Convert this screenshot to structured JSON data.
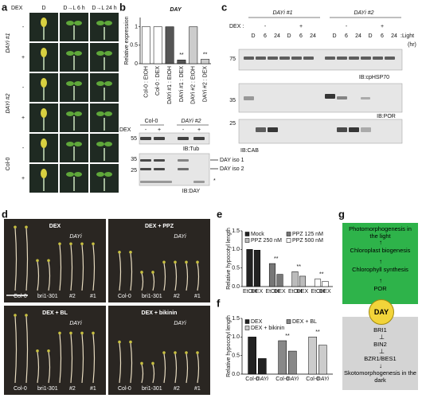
{
  "panels": {
    "a": {
      "letter": "a",
      "dex": "DEX",
      "columns": [
        "D",
        "D→L 6 h",
        "D→L 24 h"
      ],
      "rows": [
        "DAYi #1",
        "DAYi #2",
        "Col-0"
      ],
      "minus": "-",
      "plus": "+"
    },
    "b": {
      "letter": "b",
      "blot_groups": [
        "Col-0",
        "DAYi #2"
      ],
      "dex": "DEX",
      "minus": "-",
      "plus": "+",
      "tub_marker": "55",
      "tub_label": "IB:Tub",
      "day_markers": [
        "35",
        "25"
      ],
      "iso": [
        "DAY iso 1",
        "DAY iso 2"
      ],
      "star": "*",
      "day_label": "IB:DAY"
    },
    "c": {
      "letter": "c",
      "groups": [
        "DAYi #1",
        "DAYi #2"
      ],
      "dex": "DEX :",
      "minus": "-",
      "plus": "+",
      "times": [
        "D",
        "6",
        "24"
      ],
      "light": ":Light",
      "unit": "(hr)",
      "blots": [
        {
          "marker": "75",
          "label": "IB:cpHSP70"
        },
        {
          "marker": "35",
          "label": "IB:POR"
        },
        {
          "marker": "25",
          "label": "IB:CAB"
        }
      ]
    },
    "d": {
      "letter": "d",
      "conditions": [
        "DEX",
        "DEX + PPZ",
        "DEX + BL",
        "DEX + bikinin"
      ],
      "dayi": "DAYi",
      "genotypes": [
        "Col-0",
        "bri1-301",
        "#2",
        "#1"
      ]
    },
    "e": {
      "letter": "e"
    },
    "f": {
      "letter": "f"
    },
    "g": {
      "letter": "g",
      "light": [
        "Photomorphogenesis in the light",
        "Chloroplast biogenesis",
        "Chlorophyll synthesis",
        "POR"
      ],
      "day": "DAY",
      "dark": [
        "BRI1",
        "BIN2",
        "BZR1/BES1",
        "Skotomorphogenesis in the dark"
      ]
    }
  },
  "chart_data": [
    {
      "type": "bar",
      "title": "DAY",
      "y_label": "Relative expression",
      "categories": [
        "Col-0 : EtOH",
        "Col-0 : DEX",
        "DAYi #1 : EtOH",
        "DAYi #1 : DEX",
        "DAYi #2 : EtOH",
        "DAYi #2 : DEX"
      ],
      "values": [
        1,
        1,
        1,
        0.1,
        1,
        0.12
      ],
      "colors": [
        "#ffffff",
        "#ffffff",
        "#555555",
        "#555555",
        "#cccccc",
        "#cccccc"
      ],
      "ylim": [
        0,
        1.25
      ],
      "yticks": [
        0,
        0.5,
        1
      ],
      "annotations": [
        "**",
        "**"
      ]
    },
    {
      "type": "grouped-bar",
      "y_label": "Relative hypocotyl length",
      "categories": [
        "EtOH",
        "DEX"
      ],
      "series": [
        {
          "name": "Mock",
          "color": "#222222",
          "values": [
            1.0,
            0.98
          ]
        },
        {
          "name": "PPZ 125 nM",
          "color": "#777777",
          "values": [
            0.62,
            0.33
          ]
        },
        {
          "name": "PPZ 250 nM",
          "color": "#bbbbbb",
          "values": [
            0.4,
            0.28
          ]
        },
        {
          "name": "PPZ 500 nM",
          "color": "#ffffff",
          "values": [
            0.2,
            0.14
          ]
        }
      ],
      "ylim": [
        0,
        1.5
      ],
      "yticks": [
        {
          "value": 0,
          "label": "0.0"
        },
        {
          "value": 0.5,
          "label": "0.5"
        },
        {
          "value": 1,
          "label": "1.0"
        },
        {
          "value": 1.5,
          "label": "1.5"
        }
      ],
      "annotations": [
        "**",
        "**",
        "**"
      ]
    },
    {
      "type": "grouped-bar",
      "y_label": "Relative hypocotyl length",
      "categories": [
        "Col-0",
        "DAYi"
      ],
      "series": [
        {
          "name": "DEX",
          "color": "#222222",
          "values": [
            1.0,
            0.42
          ]
        },
        {
          "name": "DEX + BL",
          "color": "#888888",
          "values": [
            0.9,
            0.62
          ]
        },
        {
          "name": "DEX + bikinin",
          "color": "#cccccc",
          "values": [
            1.0,
            0.78
          ]
        }
      ],
      "ylim": [
        0,
        1.5
      ],
      "yticks": [
        {
          "value": 0,
          "label": "0.0"
        },
        {
          "value": 0.5,
          "label": "0.5"
        },
        {
          "value": 1,
          "label": "1.0"
        },
        {
          "value": 1.5,
          "label": "1.5"
        }
      ],
      "annotations": [
        "**",
        "**"
      ]
    }
  ]
}
